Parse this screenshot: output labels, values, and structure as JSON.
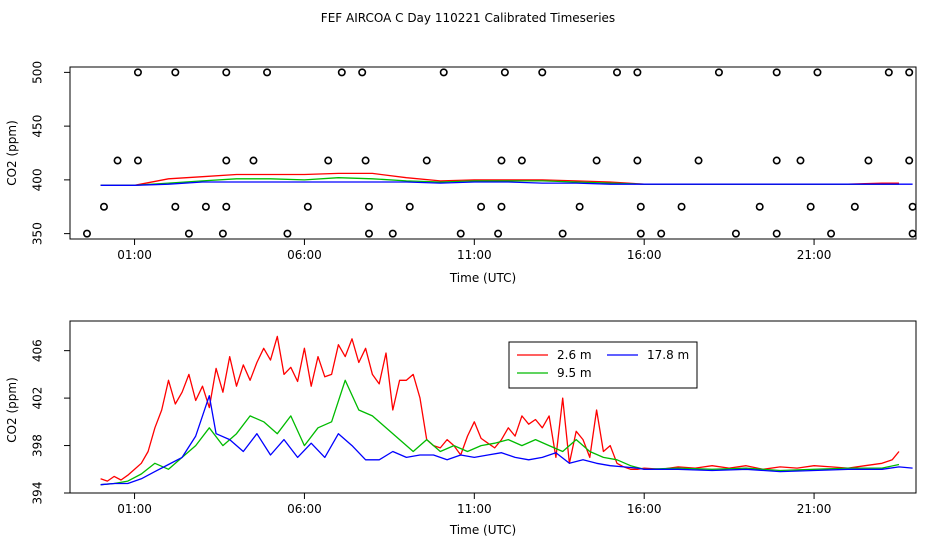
{
  "figure": {
    "title": "FEF AIRCOA C  Day 110221  Calibrated Timeseries"
  },
  "chart_data": [
    {
      "type": "line",
      "xlabel": "Time (UTC)",
      "ylabel": "CO2 (ppm)",
      "xlim": [
        -0.9,
        24.0
      ],
      "ylim": [
        345,
        505
      ],
      "xticks": [
        1,
        6,
        11,
        16,
        21
      ],
      "xtick_labels": [
        "01:00",
        "06:00",
        "11:00",
        "16:00",
        "21:00"
      ],
      "yticks": [
        350,
        400,
        450,
        500
      ],
      "ytick_labels": [
        "350",
        "400",
        "450",
        "500"
      ],
      "grid": false,
      "legend": null,
      "series": [
        {
          "color": "#ff0000",
          "x": [
            0,
            1,
            2,
            3,
            4,
            5,
            6,
            7,
            8,
            9,
            10,
            11,
            12,
            13,
            14,
            15,
            16,
            17,
            18,
            19,
            20,
            21,
            22,
            23,
            23.5
          ],
          "values": [
            395,
            395,
            401,
            403,
            405,
            405,
            405,
            406,
            406,
            402,
            399,
            400,
            400,
            400,
            399,
            398,
            396,
            396,
            396,
            396,
            396,
            396,
            396,
            397,
            397
          ]
        },
        {
          "color": "#00bb00",
          "x": [
            0,
            1,
            2,
            3,
            4,
            5,
            6,
            7,
            8,
            9,
            10,
            11,
            12,
            13,
            14,
            15,
            16,
            17,
            18,
            19,
            20,
            21,
            22,
            23,
            23.5
          ],
          "values": [
            395,
            395,
            397,
            399,
            401,
            401,
            400,
            402,
            401,
            399,
            398,
            399,
            399,
            399,
            398,
            397,
            396,
            396,
            396,
            396,
            396,
            396,
            396,
            396,
            396
          ]
        },
        {
          "color": "#0000ff",
          "x": [
            0,
            1,
            2,
            3,
            4,
            5,
            6,
            7,
            8,
            9,
            10,
            11,
            12,
            13,
            14,
            15,
            16,
            17,
            18,
            19,
            20,
            21,
            22,
            23,
            23.9
          ],
          "values": [
            395,
            395,
            396,
            398,
            398,
            398,
            398,
            398,
            398,
            398,
            397,
            398,
            398,
            397,
            397,
            396,
            396,
            396,
            396,
            396,
            396,
            396,
            396,
            396,
            396
          ]
        },
        {
          "type": "scatter",
          "marker": "open-circle",
          "color": "#000000",
          "x": [
            1.1,
            2.2,
            3.7,
            4.9,
            7.1,
            7.7,
            10.1,
            11.9,
            13.0,
            15.2,
            15.8,
            18.2,
            19.9,
            21.1,
            23.2,
            23.8,
            0.5,
            1.1,
            3.7,
            4.5,
            6.7,
            7.8,
            9.6,
            11.8,
            12.4,
            14.6,
            15.8,
            17.6,
            19.9,
            20.6,
            22.6,
            23.8,
            0.1,
            2.2,
            3.1,
            3.7,
            6.1,
            7.9,
            9.1,
            11.2,
            11.8,
            14.1,
            15.9,
            17.1,
            19.4,
            20.9,
            22.2,
            23.9,
            -0.4,
            2.6,
            3.6,
            5.5,
            7.9,
            8.6,
            10.6,
            11.7,
            13.6,
            15.9,
            16.5,
            18.7,
            19.9,
            21.5,
            23.9
          ],
          "values": [
            500,
            500,
            500,
            500,
            500,
            500,
            500,
            500,
            500,
            500,
            500,
            500,
            500,
            500,
            500,
            500,
            418,
            418,
            418,
            418,
            418,
            418,
            418,
            418,
            418,
            418,
            418,
            418,
            418,
            418,
            418,
            418,
            375,
            375,
            375,
            375,
            375,
            375,
            375,
            375,
            375,
            375,
            375,
            375,
            375,
            375,
            375,
            375,
            350,
            350,
            350,
            350,
            350,
            350,
            350,
            350,
            350,
            350,
            350,
            350,
            350,
            350,
            350
          ]
        }
      ]
    },
    {
      "type": "line",
      "xlabel": "Time (UTC)",
      "ylabel": "CO2 (ppm)",
      "xlim": [
        -0.9,
        24.0
      ],
      "ylim": [
        394,
        408.5
      ],
      "xticks": [
        1,
        6,
        11,
        16,
        21
      ],
      "xtick_labels": [
        "01:00",
        "06:00",
        "11:00",
        "16:00",
        "21:00"
      ],
      "yticks": [
        394,
        398,
        402,
        406
      ],
      "ytick_labels": [
        "394",
        "398",
        "402",
        "406"
      ],
      "grid": false,
      "legend": "top-center",
      "series": [
        {
          "name": "2.6 m",
          "color": "#ff0000",
          "x": [
            0,
            0.2,
            0.4,
            0.6,
            0.8,
            1.0,
            1.2,
            1.4,
            1.6,
            1.8,
            2.0,
            2.2,
            2.4,
            2.6,
            2.8,
            3.0,
            3.2,
            3.4,
            3.6,
            3.8,
            4.0,
            4.2,
            4.4,
            4.6,
            4.8,
            5.0,
            5.2,
            5.4,
            5.6,
            5.8,
            6.0,
            6.2,
            6.4,
            6.6,
            6.8,
            7.0,
            7.2,
            7.4,
            7.6,
            7.8,
            8.0,
            8.2,
            8.4,
            8.6,
            8.8,
            9.0,
            9.2,
            9.4,
            9.6,
            9.8,
            10.0,
            10.2,
            10.4,
            10.6,
            10.8,
            11.0,
            11.2,
            11.4,
            11.6,
            11.8,
            12.0,
            12.2,
            12.4,
            12.6,
            12.8,
            13.0,
            13.2,
            13.4,
            13.6,
            13.8,
            14.0,
            14.2,
            14.4,
            14.6,
            14.8,
            15.0,
            15.2,
            15.4,
            15.6,
            15.8,
            16.0,
            16.5,
            17.0,
            17.5,
            18.0,
            18.5,
            19.0,
            19.5,
            20.0,
            20.5,
            21.0,
            21.5,
            22.0,
            22.5,
            23.0,
            23.3,
            23.5
          ],
          "values": [
            395.2,
            395.0,
            395.4,
            395.1,
            395.5,
            396.0,
            396.5,
            397.5,
            399.5,
            401.0,
            403.5,
            401.5,
            402.5,
            404.0,
            401.8,
            403.0,
            401.2,
            404.5,
            402.5,
            405.5,
            403.0,
            404.8,
            403.5,
            405.0,
            406.2,
            405.2,
            407.2,
            404.0,
            404.6,
            403.4,
            406.2,
            403.0,
            405.5,
            403.8,
            404.0,
            406.5,
            405.5,
            407.0,
            405.0,
            406.2,
            404.0,
            403.2,
            405.8,
            401.0,
            403.5,
            403.5,
            404.0,
            402.0,
            398.5,
            398.0,
            397.8,
            398.5,
            398.0,
            397.2,
            398.8,
            400.0,
            398.6,
            398.2,
            397.8,
            398.5,
            399.5,
            398.8,
            400.5,
            399.8,
            400.2,
            399.5,
            400.5,
            397.0,
            402.0,
            396.5,
            399.2,
            398.5,
            397.0,
            401.0,
            397.5,
            398.0,
            396.5,
            396.2,
            396.0,
            396.0,
            396.1,
            396.0,
            396.2,
            396.1,
            396.3,
            396.1,
            396.3,
            396.0,
            396.2,
            396.1,
            396.3,
            396.2,
            396.1,
            396.3,
            396.5,
            396.8,
            397.5
          ]
        },
        {
          "name": "9.5 m",
          "color": "#00bb00",
          "x": [
            0,
            0.4,
            0.8,
            1.2,
            1.6,
            2.0,
            2.4,
            2.8,
            3.2,
            3.6,
            4.0,
            4.4,
            4.8,
            5.2,
            5.6,
            6.0,
            6.4,
            6.8,
            7.2,
            7.6,
            8.0,
            8.4,
            8.8,
            9.2,
            9.6,
            10.0,
            10.4,
            10.8,
            11.2,
            11.6,
            12.0,
            12.4,
            12.8,
            13.2,
            13.6,
            14.0,
            14.4,
            14.8,
            15.2,
            15.6,
            16.0,
            17.0,
            18.0,
            19.0,
            20.0,
            21.0,
            22.0,
            23.0,
            23.5
          ],
          "values": [
            394.7,
            394.8,
            395.0,
            395.6,
            396.5,
            396.0,
            397.0,
            398.0,
            399.5,
            398.0,
            399.0,
            400.5,
            400.0,
            399.0,
            400.5,
            398.0,
            399.5,
            400.0,
            403.5,
            401.0,
            400.5,
            399.5,
            398.5,
            397.5,
            398.5,
            397.5,
            398.0,
            397.5,
            398.0,
            398.2,
            398.5,
            398.0,
            398.5,
            398.0,
            397.5,
            398.5,
            397.5,
            397.0,
            396.8,
            396.3,
            396.0,
            396.1,
            396.0,
            396.1,
            395.9,
            396.0,
            396.1,
            396.1,
            396.4
          ]
        },
        {
          "name": "17.8 m",
          "color": "#0000ff",
          "x": [
            0,
            0.4,
            0.8,
            1.2,
            1.6,
            2.0,
            2.4,
            2.8,
            3.0,
            3.2,
            3.4,
            3.8,
            4.2,
            4.6,
            5.0,
            5.4,
            5.8,
            6.2,
            6.6,
            7.0,
            7.4,
            7.8,
            8.2,
            8.6,
            9.0,
            9.4,
            9.8,
            10.2,
            10.6,
            11.0,
            11.4,
            11.8,
            12.2,
            12.6,
            13.0,
            13.4,
            13.8,
            14.2,
            14.6,
            15.0,
            15.4,
            15.8,
            16.0,
            17.0,
            18.0,
            19.0,
            20.0,
            21.0,
            22.0,
            23.0,
            23.5,
            23.9
          ],
          "values": [
            394.7,
            394.8,
            394.8,
            395.2,
            395.8,
            396.4,
            397.0,
            398.8,
            400.5,
            402.2,
            399.0,
            398.5,
            397.5,
            399.0,
            397.2,
            398.5,
            397.0,
            398.2,
            397.0,
            399.0,
            398.0,
            396.8,
            396.8,
            397.5,
            397.0,
            397.2,
            397.2,
            396.8,
            397.2,
            397.0,
            397.2,
            397.4,
            397.0,
            396.8,
            397.0,
            397.4,
            396.5,
            396.8,
            396.5,
            396.3,
            396.2,
            396.1,
            396.0,
            396.0,
            395.9,
            396.0,
            395.8,
            395.9,
            396.0,
            396.0,
            396.2,
            396.1
          ]
        }
      ]
    }
  ]
}
